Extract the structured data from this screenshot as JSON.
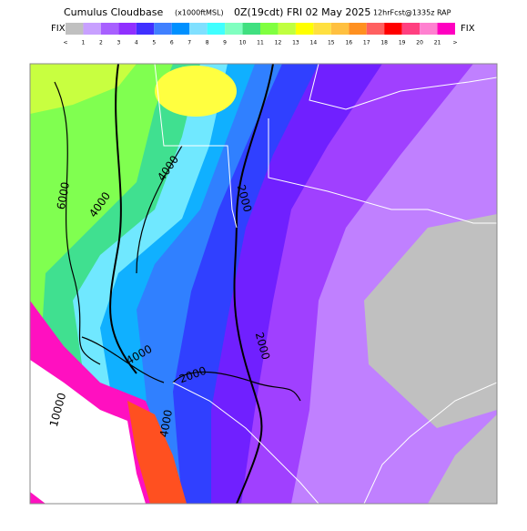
{
  "header": {
    "title": "Cumulus Cloudbase",
    "units": "(x1000ftMSL)",
    "valid": "0Z(19cdt) FRI 02 May 2025",
    "forecast": "12hrFcst@1335z RAP"
  },
  "legend": {
    "left": "FIX",
    "right": "FIX",
    "labels": [
      "<",
      "1",
      "2",
      "3",
      "4",
      "5",
      "6",
      "7",
      "8",
      "9",
      "10",
      "11",
      "12",
      "13",
      "14",
      "15",
      "16",
      "17",
      "18",
      "19",
      "20",
      "21",
      ">"
    ],
    "colors": [
      "#c0c0c0",
      "#c8a0ff",
      "#a860ff",
      "#9030ff",
      "#4030ff",
      "#4080ff",
      "#0090ff",
      "#80e0ff",
      "#40ffff",
      "#80ffc0",
      "#40e080",
      "#80ff40",
      "#c0ff40",
      "#ffff00",
      "#ffe040",
      "#ffc040",
      "#ff9020",
      "#ff6060",
      "#ff0000",
      "#ff4080",
      "#ff80d0",
      "#ff00c0"
    ]
  },
  "contour_labels": [
    "6000",
    "4000",
    "4000",
    "2000",
    "4000",
    "2000",
    "2000",
    "4000",
    "10000"
  ]
}
